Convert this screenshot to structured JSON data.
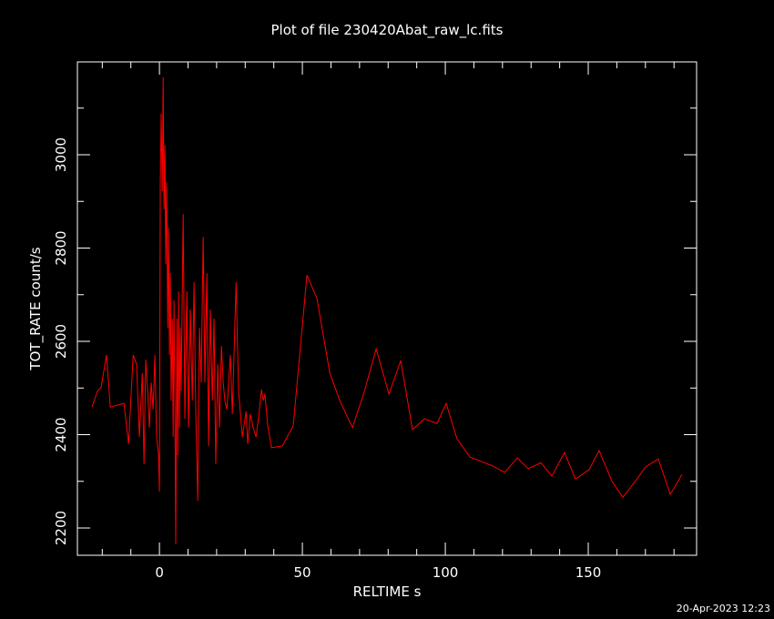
{
  "chart_data": {
    "type": "line",
    "title": "Plot of file 230420Abat_raw_lc.fits",
    "x_label": "RELTIME  s",
    "y_label": "TOT_RATE  count/s",
    "footer": "20-Apr-2023 12:23",
    "xlim": [
      -28.7,
      187.9
    ],
    "ylim": [
      2141.5,
      3199
    ],
    "xticks": [
      0,
      50,
      100,
      150
    ],
    "yticks": [
      2200,
      2400,
      2600,
      2800,
      3000
    ],
    "xminorticks": [
      -20,
      -10,
      10,
      20,
      30,
      40,
      60,
      70,
      80,
      90,
      110,
      120,
      130,
      140,
      160,
      170,
      180
    ],
    "yminorticks": [
      2300,
      2500,
      2700,
      2900,
      3100
    ],
    "x": [
      -23.6,
      -21.7,
      -20.4,
      -18.5,
      -17.2,
      -15,
      -12.4,
      -10.8,
      -9.2,
      -8,
      -7,
      -6,
      -5.4,
      -4.8,
      -4.1,
      -3.5,
      -2.9,
      -2.2,
      -1.6,
      -1,
      -0.3,
      0,
      0.3,
      0.6,
      1,
      1.3,
      1.6,
      1.9,
      2.2,
      2.5,
      2.9,
      3.2,
      3.5,
      3.8,
      4.1,
      4.5,
      4.8,
      5.1,
      5.4,
      5.7,
      6.1,
      6.4,
      6.7,
      7,
      7.3,
      7.6,
      8.3,
      8.9,
      9.6,
      10.2,
      10.8,
      11.5,
      12.1,
      12.7,
      13.4,
      14,
      14.6,
      15.3,
      15.9,
      16.6,
      17.2,
      17.8,
      18.5,
      19.1,
      19.7,
      20.4,
      21,
      21.7,
      22.3,
      22.9,
      23.6,
      24.2,
      24.8,
      25.5,
      26.8,
      27.7,
      29,
      30.3,
      30.9,
      31.8,
      32.8,
      33.8,
      34.7,
      35.7,
      36.3,
      36.9,
      37.9,
      39.2,
      43,
      46.8,
      51.6,
      55.1,
      59.6,
      63.1,
      67.5,
      71.7,
      75.8,
      80.3,
      84.4,
      88.5,
      92.7,
      97.1,
      100.3,
      104.1,
      108.6,
      116.6,
      120.7,
      125.2,
      129,
      133.4,
      137.3,
      141.7,
      145.5,
      150.3,
      153.8,
      158.3,
      162.1,
      166.2,
      170.1,
      174.5,
      178.7,
      182.8
    ],
    "series": [
      {
        "color": "#ff0000",
        "values": [
          2459,
          2493,
          2502,
          2571,
          2459,
          2463,
          2467,
          2380,
          2571,
          2551,
          2395,
          2532,
          2337,
          2561,
          2493,
          2415,
          2512,
          2454,
          2571,
          2395,
          2356,
          2278,
          2941,
          3088,
          2922,
          3166,
          2883,
          3020,
          2766,
          2941,
          2629,
          2844,
          2571,
          2746,
          2473,
          2649,
          2395,
          2688,
          2473,
          2165,
          2649,
          2356,
          2707,
          2415,
          2629,
          2493,
          2873,
          2434,
          2707,
          2415,
          2668,
          2473,
          2727,
          2454,
          2258,
          2629,
          2512,
          2824,
          2512,
          2746,
          2376,
          2668,
          2473,
          2649,
          2337,
          2551,
          2415,
          2590,
          2512,
          2473,
          2454,
          2512,
          2571,
          2444,
          2727,
          2493,
          2395,
          2450,
          2380,
          2444,
          2415,
          2395,
          2438,
          2497,
          2473,
          2487,
          2419,
          2372,
          2376,
          2419,
          2742,
          2692,
          2532,
          2473,
          2415,
          2493,
          2584,
          2487,
          2559,
          2411,
          2434,
          2424,
          2467,
          2391,
          2352,
          2333,
          2319,
          2350,
          2327,
          2340,
          2311,
          2362,
          2305,
          2325,
          2366,
          2300,
          2266,
          2298,
          2331,
          2348,
          2272,
          2315
        ]
      }
    ]
  }
}
